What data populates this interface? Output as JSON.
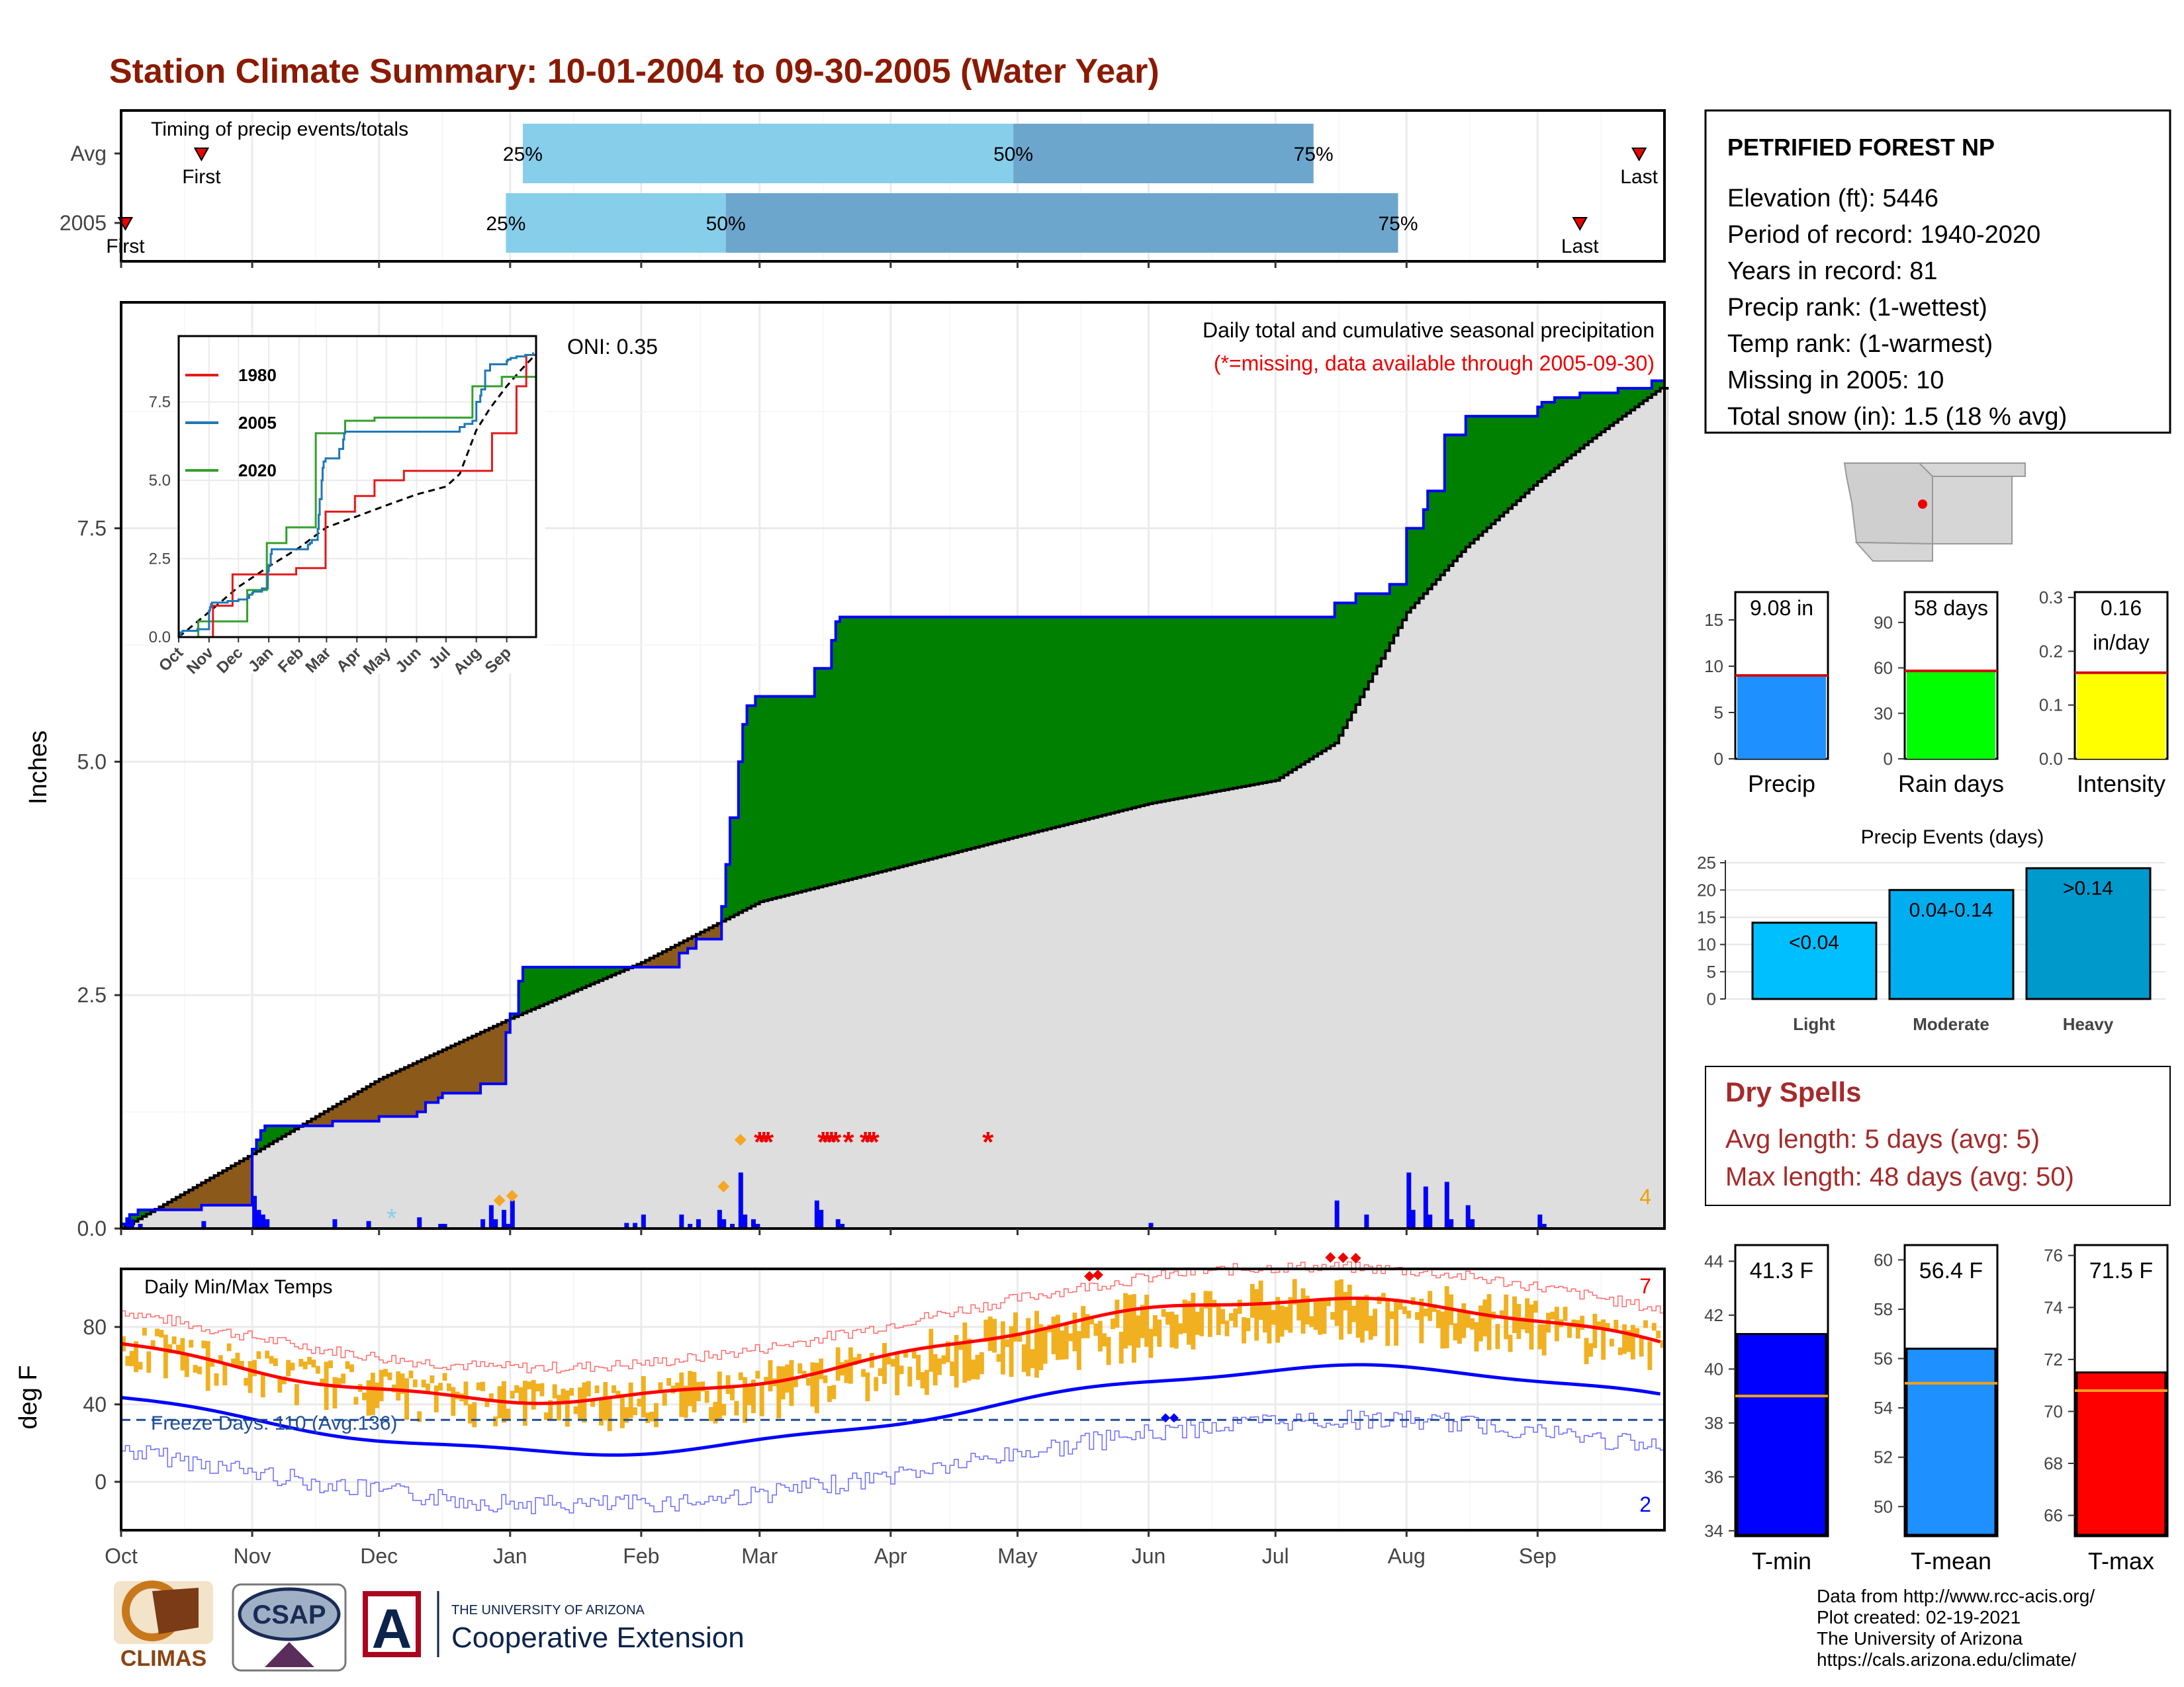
{
  "title": "Station Climate Summary: 10-01-2004 to 09-30-2005 (Water Year)",
  "timing": {
    "title": "Timing of precip events/totals",
    "rows": [
      {
        "label": "Avg",
        "first_label": "First",
        "last_label": "Last",
        "first": "Oct 20",
        "p25": "Jan 4",
        "p50": "Apr 30",
        "p75": "Jul 10",
        "last": "Sep 25"
      },
      {
        "label": "2005",
        "first_label": "First",
        "last_label": "Last",
        "first": "Oct 2",
        "p25": "Dec 31",
        "p50": "Feb 21",
        "p75": "Jul 30",
        "last": "Sep 11"
      }
    ],
    "pct_labels": [
      "25%",
      "50%",
      "75%"
    ]
  },
  "precip_panel": {
    "ylabel": "Inches",
    "yticks": [
      "0.0",
      "2.5",
      "5.0",
      "7.5"
    ],
    "caption1": "Daily total and cumulative seasonal precipitation",
    "caption2": "(*=missing, data available through 2005-09-30)",
    "oni": "ONI: 0.35",
    "corner_count": "4",
    "steps": [
      [
        "Oct 1",
        0.05
      ],
      [
        "Oct 3",
        0.15
      ],
      [
        "Oct 5",
        0.2
      ],
      [
        "Oct 20",
        0.25
      ],
      [
        "Nov 28",
        0.4
      ],
      [
        "Dec 3",
        0.55
      ],
      [
        "Dec 10",
        0.6
      ],
      [
        "Dec 14",
        0.65
      ],
      [
        "Nov 1",
        0.85
      ],
      [
        "Nov 2",
        0.95
      ],
      [
        "Nov 3",
        1.05
      ],
      [
        "Nov 4",
        1.1
      ],
      [
        "Nov 20",
        1.15
      ],
      [
        "Dec 1",
        1.2
      ],
      [
        "Dec 10",
        1.25
      ],
      [
        "Dec 12",
        1.35
      ],
      [
        "Dec 15",
        1.4
      ],
      [
        "Dec 16",
        1.45
      ],
      [
        "Dec 25",
        1.55
      ],
      [
        "Dec 31",
        2.1
      ],
      [
        "Jan 1",
        2.3
      ],
      [
        "Jan 3",
        2.65
      ],
      [
        "Jan 4",
        2.8
      ],
      [
        "Feb 10",
        2.95
      ],
      [
        "Feb 12",
        3.0
      ],
      [
        "Feb 14",
        3.1
      ],
      [
        "Feb 20",
        3.45
      ],
      [
        "Feb 21",
        3.9
      ],
      [
        "Feb 22",
        4.4
      ],
      [
        "Feb 24",
        5.0
      ],
      [
        "Feb 25",
        5.4
      ],
      [
        "Feb 26",
        5.6
      ],
      [
        "Feb 28",
        5.7
      ],
      [
        "Mar 14",
        6.0
      ],
      [
        "Mar 18",
        6.3
      ],
      [
        "Mar 19",
        6.5
      ],
      [
        "Mar 20",
        6.55
      ],
      [
        "Jul 15",
        6.7
      ],
      [
        "Jul 20",
        6.8
      ],
      [
        "Jul 28",
        6.9
      ],
      [
        "Aug 1",
        7.5
      ],
      [
        "Aug 5",
        7.7
      ],
      [
        "Aug 6",
        7.9
      ],
      [
        "Aug 10",
        8.5
      ],
      [
        "Aug 15",
        8.7
      ],
      [
        "Sep 1",
        8.8
      ],
      [
        "Sep 2",
        8.85
      ],
      [
        "Sep 5",
        8.9
      ],
      [
        "Sep 11",
        8.95
      ],
      [
        "Sep 20",
        9.0
      ],
      [
        "Sep 28",
        9.08
      ]
    ],
    "avg_cum": [
      [
        "Oct 1",
        0.0
      ],
      [
        "Nov 1",
        0.8
      ],
      [
        "Dec 1",
        1.6
      ],
      [
        "Jan 1",
        2.25
      ],
      [
        "Feb 1",
        2.85
      ],
      [
        "Mar 1",
        3.5
      ],
      [
        "Apr 1",
        3.85
      ],
      [
        "May 1",
        4.2
      ],
      [
        "Jun 1",
        4.55
      ],
      [
        "Jul 1",
        4.8
      ],
      [
        "Jul 15",
        5.2
      ],
      [
        "Aug 1",
        6.6
      ],
      [
        "Aug 15",
        7.3
      ],
      [
        "Sep 1",
        8.0
      ],
      [
        "Sep 15",
        8.5
      ],
      [
        "Sep 30",
        9.0
      ]
    ],
    "daily_bars": [
      [
        "Oct 2",
        0.12
      ],
      [
        "Oct 3",
        0.1
      ],
      [
        "Oct 5",
        0.05
      ],
      [
        "Oct 20",
        0.08
      ],
      [
        "Nov 1",
        0.35
      ],
      [
        "Nov 2",
        0.2
      ],
      [
        "Nov 3",
        0.15
      ],
      [
        "Nov 4",
        0.1
      ],
      [
        "Nov 20",
        0.1
      ],
      [
        "Nov 28",
        0.08
      ],
      [
        "Dec 10",
        0.12
      ],
      [
        "Dec 15",
        0.05
      ],
      [
        "Dec 16",
        0.05
      ],
      [
        "Dec 25",
        0.1
      ],
      [
        "Dec 27",
        0.25
      ],
      [
        "Dec 28",
        0.1
      ],
      [
        "Dec 30",
        0.2
      ],
      [
        "Dec 31",
        0.05
      ],
      [
        "Jan 1",
        0.3
      ],
      [
        "Jan 28",
        0.06
      ],
      [
        "Jan 30",
        0.06
      ],
      [
        "Feb 1",
        0.15
      ],
      [
        "Feb 10",
        0.15
      ],
      [
        "Feb 12",
        0.05
      ],
      [
        "Feb 14",
        0.1
      ],
      [
        "Feb 19",
        0.2
      ],
      [
        "Feb 20",
        0.1
      ],
      [
        "Feb 22",
        0.05
      ],
      [
        "Feb 24",
        0.6
      ],
      [
        "Feb 25",
        0.15
      ],
      [
        "Feb 27",
        0.1
      ],
      [
        "Feb 28",
        0.05
      ],
      [
        "Mar 14",
        0.3
      ],
      [
        "Mar 15",
        0.2
      ],
      [
        "Mar 19",
        0.1
      ],
      [
        "Mar 20",
        0.05
      ],
      [
        "Jun 1",
        0.06
      ],
      [
        "Jul 15",
        0.3
      ],
      [
        "Jul 22",
        0.15
      ],
      [
        "Aug 1",
        0.6
      ],
      [
        "Aug 2",
        0.2
      ],
      [
        "Aug 5",
        0.45
      ],
      [
        "Aug 6",
        0.15
      ],
      [
        "Aug 10",
        0.5
      ],
      [
        "Aug 11",
        0.1
      ],
      [
        "Aug 15",
        0.25
      ],
      [
        "Aug 16",
        0.1
      ],
      [
        "Sep 1",
        0.15
      ],
      [
        "Sep 2",
        0.05
      ]
    ],
    "legend_markers": [
      [
        "Dec 4",
        "star"
      ]
    ],
    "missing_stars": [
      "Mar 1",
      "Mar 2",
      "Mar 3",
      "Mar 16",
      "Mar 17",
      "Mar 18",
      "Mar 19",
      "Mar 22",
      "Mar 26",
      "Mar 27",
      "Mar 28",
      "Apr 24"
    ],
    "orange_markers": [
      [
        "Dec 29",
        0.3
      ],
      [
        "Jan 1",
        0.35
      ],
      [
        "Feb 20",
        0.45
      ],
      [
        "Feb 24",
        0.95
      ]
    ],
    "inset": {
      "yticks": [
        "0.0",
        "2.5",
        "5.0",
        "7.5"
      ],
      "xticks": [
        "Oct",
        "Nov",
        "Dec",
        "Jan",
        "Feb",
        "Mar",
        "Apr",
        "May",
        "Jun",
        "Jul",
        "Aug",
        "Sep"
      ],
      "legend": [
        {
          "name": "1980",
          "color": "#e31a1c"
        },
        {
          "name": "2005",
          "color": "#1f78b4"
        },
        {
          "name": "2020",
          "color": "#33a02c"
        }
      ]
    }
  },
  "temp_panel": {
    "ylabel": "deg F",
    "yticks": [
      "0",
      "40",
      "80"
    ],
    "title": "Daily Min/Max Temps",
    "freeze_text": "Freeze Days: 110 (Avg:136)",
    "hot_count": "7",
    "cold_count": "2",
    "xticks": [
      "Oct",
      "Nov",
      "Dec",
      "Jan",
      "Feb",
      "Mar",
      "Apr",
      "May",
      "Jun",
      "Jul",
      "Aug",
      "Sep"
    ],
    "freeze_line": 32
  },
  "station": {
    "name": "PETRIFIED FOREST NP",
    "lines": [
      "Elevation (ft): 5446",
      "Period of record: 1940-2020",
      "Years in record: 81",
      "Precip rank:  (1-wettest)",
      "Temp rank:  (1-warmest)",
      "Missing in 2005: 10",
      "Total snow (in): 1.5 (18 % avg)"
    ]
  },
  "mini_bars": [
    {
      "label": "Precip",
      "value_text": "9.08 in",
      "value": 9.08,
      "avg": 9.0,
      "ymax": 18,
      "ticks": [
        "0",
        "5",
        "10",
        "15"
      ],
      "tickvals": [
        0,
        5,
        10,
        15
      ],
      "color": "#1e90ff"
    },
    {
      "label": "Rain days",
      "value_text": "58 days",
      "value": 58,
      "avg": 58,
      "ymax": 110,
      "ticks": [
        "0",
        "30",
        "60",
        "90"
      ],
      "tickvals": [
        0,
        30,
        60,
        90
      ],
      "color": "#00ff00"
    },
    {
      "label": "Intensity",
      "value_text": "0.16\nin/day",
      "value": 0.16,
      "avg": 0.16,
      "ymax": 0.31,
      "ticks": [
        "0.0",
        "0.1",
        "0.2",
        "0.3"
      ],
      "tickvals": [
        0,
        0.1,
        0.2,
        0.3
      ],
      "color": "#ffff00"
    }
  ],
  "events": {
    "title": "Precip Events (days)",
    "yticks": [
      "0",
      "5",
      "10",
      "15",
      "20",
      "25"
    ],
    "bars": [
      {
        "label": "Light",
        "value": 14,
        "text": "<0.04",
        "color": "#00bfff"
      },
      {
        "label": "Moderate",
        "value": 20,
        "text": "0.04-0.14",
        "color": "#00aeef"
      },
      {
        "label": "Heavy",
        "value": 24,
        "text": ">0.14",
        "color": "#0099cc"
      }
    ]
  },
  "dry_spells": {
    "title": "Dry Spells",
    "avg_line": "Avg length: 5 days (avg: 5)",
    "max_line": "Max length: 48 days (avg: 50)"
  },
  "temp_bars": [
    {
      "label": "T-min",
      "value_text": "41.3 F",
      "value": 41.3,
      "avg": 39.0,
      "ymin": 33.8,
      "ymax": 44.6,
      "ticks": [
        "34",
        "36",
        "38",
        "40",
        "42",
        "44"
      ],
      "tickvals": [
        34,
        36,
        38,
        40,
        42,
        44
      ],
      "color": "#0000ff"
    },
    {
      "label": "T-mean",
      "value_text": "56.4 F",
      "value": 56.4,
      "avg": 55.0,
      "ymin": 48.8,
      "ymax": 60.6,
      "ticks": [
        "50",
        "52",
        "54",
        "56",
        "58",
        "60"
      ],
      "tickvals": [
        50,
        52,
        54,
        56,
        58,
        60
      ],
      "color": "#1e90ff"
    },
    {
      "label": "T-max",
      "value_text": "71.5 F",
      "value": 71.5,
      "avg": 70.8,
      "ymin": 65.2,
      "ymax": 76.4,
      "ticks": [
        "66",
        "68",
        "70",
        "72",
        "74",
        "76"
      ],
      "tickvals": [
        66,
        68,
        70,
        72,
        74,
        76
      ],
      "color": "#ff0000"
    }
  ],
  "footer": {
    "lines": [
      "Data from http://www.rcc-acis.org/",
      "Plot created: 02-19-2021",
      "The University of Arizona",
      "https://cals.arizona.edu/climate/"
    ],
    "logo1": "CLIMAS",
    "logo2": "CSAP",
    "logo3_small": "THE UNIVERSITY OF ARIZONA",
    "logo3_big": "Cooperative Extension"
  },
  "colors": {
    "title": "#8b1a00",
    "green": "#008000",
    "brown": "#8b5a1a",
    "gray": "#dedede",
    "blue": "#0000ff",
    "gold": "#f0b020",
    "red": "#ff0000"
  },
  "chart_data": [
    {
      "type": "area",
      "title": "Daily total and cumulative seasonal precipitation",
      "ylabel": "Inches",
      "ylim": [
        0,
        9.2
      ],
      "series": [
        {
          "name": "2005",
          "values": "precip_panel.steps"
        }
      ]
    },
    {
      "type": "line",
      "title": "Daily Min/Max Temps",
      "ylabel": "deg F",
      "ylim": [
        -25,
        110
      ]
    },
    {
      "type": "bar",
      "title": "Precip Events (days)",
      "categories": [
        "Light",
        "Moderate",
        "Heavy"
      ],
      "values": [
        14,
        20,
        24
      ]
    }
  ]
}
